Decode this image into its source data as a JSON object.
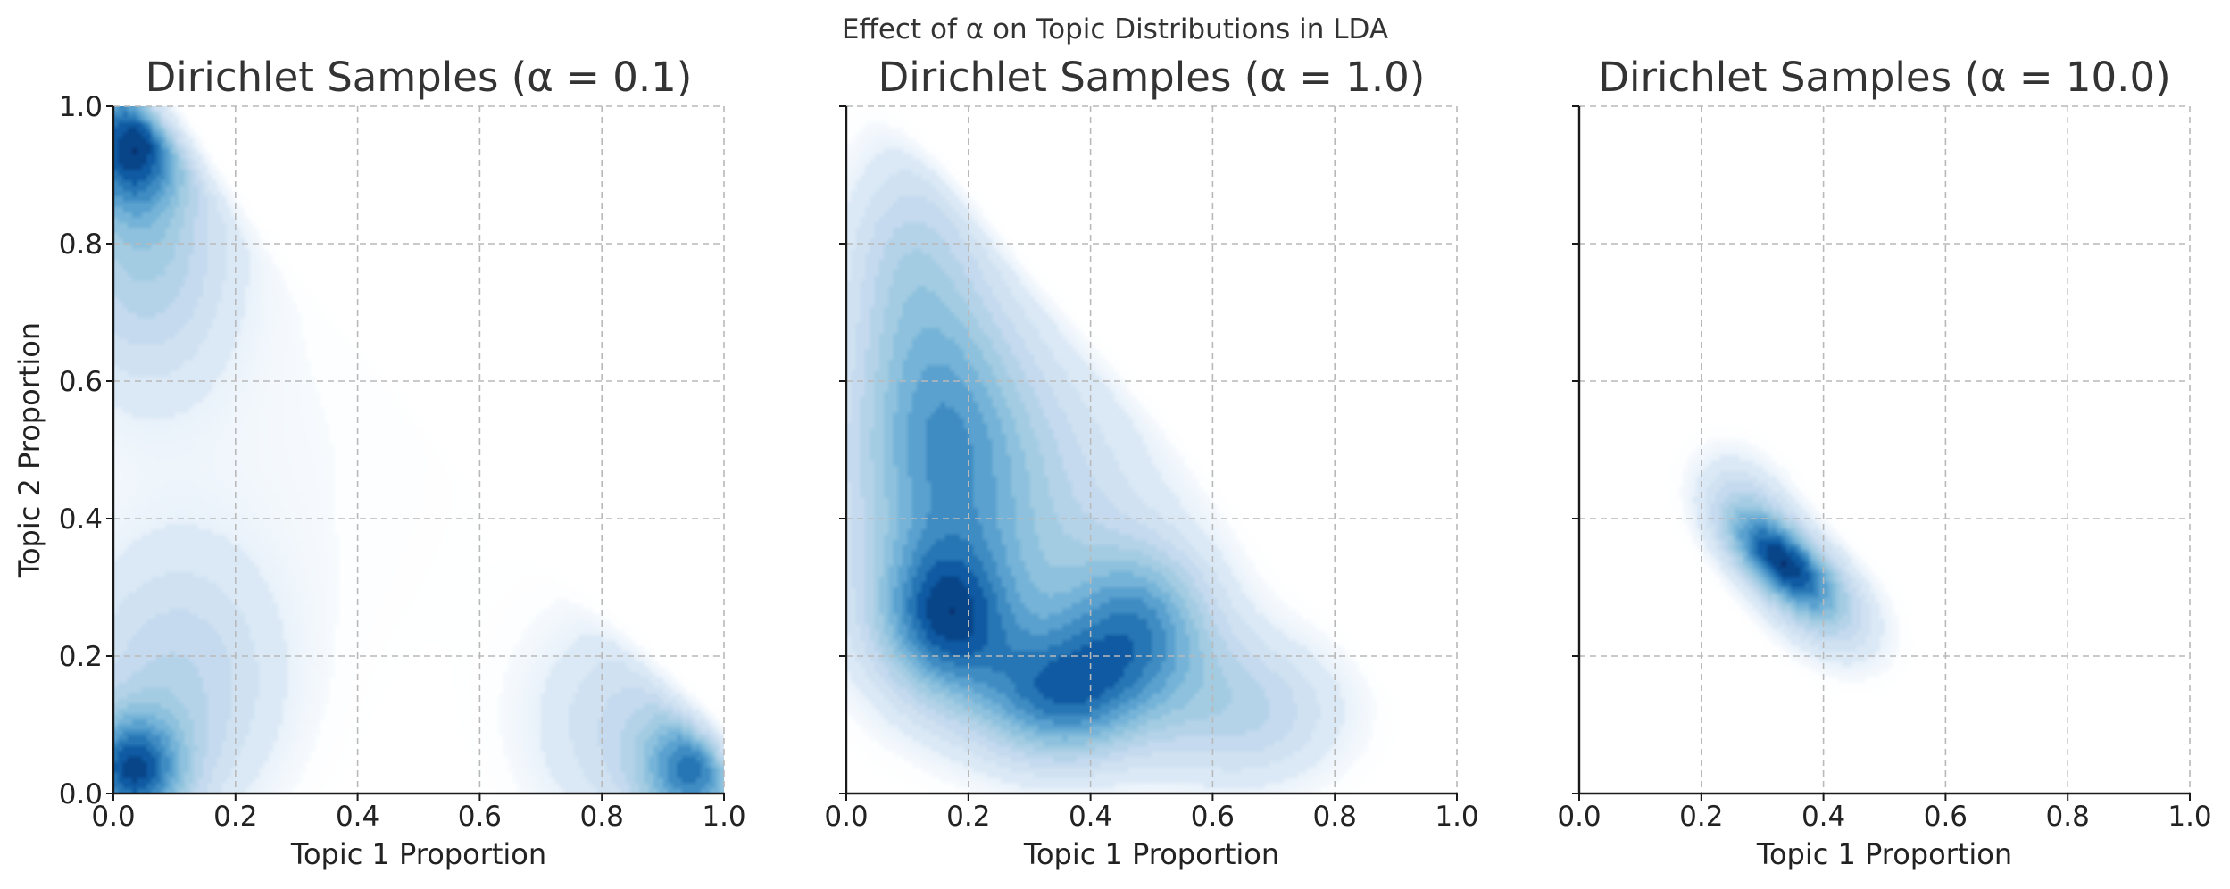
{
  "figure": {
    "suptitle": "Effect of α on Topic Distributions in LDA",
    "colormap": "Blues",
    "colors": {
      "light": "#f7fbff",
      "mid": "#6baed6",
      "dark": "#08306b",
      "grid": "#b9b9b9",
      "axis": "#1a1a1a"
    }
  },
  "chart_data": [
    {
      "type": "heatmap",
      "subtype": "kde-density",
      "title": "Dirichlet Samples (α = 0.1)",
      "xlabel": "Topic 1 Proportion",
      "ylabel": "Topic 2 Proportion",
      "xlim": [
        0.0,
        1.0
      ],
      "ylim": [
        0.0,
        1.0
      ],
      "xticks": [
        "0.0",
        "0.2",
        "0.4",
        "0.6",
        "0.8",
        "1.0"
      ],
      "yticks": [
        "0.0",
        "0.2",
        "0.4",
        "0.6",
        "0.8",
        "1.0"
      ],
      "show_yticklabels": true,
      "grid": true,
      "density_peaks": [
        {
          "x": 0.03,
          "y": 0.95,
          "weight": 1.0,
          "spread": [
            0.06,
            0.07
          ]
        },
        {
          "x": 0.05,
          "y": 0.8,
          "weight": 0.55,
          "spread": [
            0.1,
            0.14
          ]
        },
        {
          "x": 0.03,
          "y": 0.03,
          "weight": 1.0,
          "spread": [
            0.06,
            0.06
          ]
        },
        {
          "x": 0.1,
          "y": 0.15,
          "weight": 0.45,
          "spread": [
            0.12,
            0.14
          ]
        },
        {
          "x": 0.95,
          "y": 0.03,
          "weight": 0.85,
          "spread": [
            0.06,
            0.06
          ]
        },
        {
          "x": 0.85,
          "y": 0.1,
          "weight": 0.4,
          "spread": [
            0.12,
            0.12
          ]
        },
        {
          "x": 0.25,
          "y": 0.5,
          "weight": 0.1,
          "spread": [
            0.3,
            0.3
          ]
        }
      ]
    },
    {
      "type": "heatmap",
      "subtype": "kde-density",
      "title": "Dirichlet Samples (α = 1.0)",
      "xlabel": "Topic 1 Proportion",
      "ylabel": "",
      "xlim": [
        0.0,
        1.0
      ],
      "ylim": [
        0.0,
        1.0
      ],
      "xticks": [
        "0.0",
        "0.2",
        "0.4",
        "0.6",
        "0.8",
        "1.0"
      ],
      "yticks": [
        "0.0",
        "0.2",
        "0.4",
        "0.6",
        "0.8",
        "1.0"
      ],
      "show_yticklabels": false,
      "grid": true,
      "density_peaks": [
        {
          "x": 0.35,
          "y": 0.14,
          "weight": 1.0,
          "spread": [
            0.1,
            0.07
          ]
        },
        {
          "x": 0.16,
          "y": 0.25,
          "weight": 0.95,
          "spread": [
            0.08,
            0.08
          ]
        },
        {
          "x": 0.48,
          "y": 0.25,
          "weight": 0.85,
          "spread": [
            0.09,
            0.08
          ]
        },
        {
          "x": 0.15,
          "y": 0.55,
          "weight": 0.7,
          "spread": [
            0.1,
            0.16
          ]
        },
        {
          "x": 0.25,
          "y": 0.4,
          "weight": 0.6,
          "spread": [
            0.18,
            0.18
          ]
        },
        {
          "x": 0.65,
          "y": 0.12,
          "weight": 0.55,
          "spread": [
            0.12,
            0.08
          ]
        },
        {
          "x": 0.1,
          "y": 0.8,
          "weight": 0.4,
          "spread": [
            0.08,
            0.12
          ]
        }
      ]
    },
    {
      "type": "heatmap",
      "subtype": "kde-density",
      "title": "Dirichlet Samples (α = 10.0)",
      "xlabel": "Topic 1 Proportion",
      "ylabel": "",
      "xlim": [
        0.0,
        1.0
      ],
      "ylim": [
        0.0,
        1.0
      ],
      "xticks": [
        "0.0",
        "0.2",
        "0.4",
        "0.6",
        "0.8",
        "1.0"
      ],
      "yticks": [
        "0.0",
        "0.2",
        "0.4",
        "0.6",
        "0.8",
        "1.0"
      ],
      "show_yticklabels": false,
      "grid": true,
      "density_peaks": [
        {
          "x": 0.33,
          "y": 0.34,
          "weight": 1.0,
          "spread": [
            0.06,
            0.05
          ],
          "rho": -0.55
        },
        {
          "x": 0.4,
          "y": 0.27,
          "weight": 0.45,
          "spread": [
            0.07,
            0.06
          ],
          "rho": -0.4
        },
        {
          "x": 0.27,
          "y": 0.42,
          "weight": 0.35,
          "spread": [
            0.06,
            0.06
          ],
          "rho": -0.3
        }
      ]
    }
  ]
}
